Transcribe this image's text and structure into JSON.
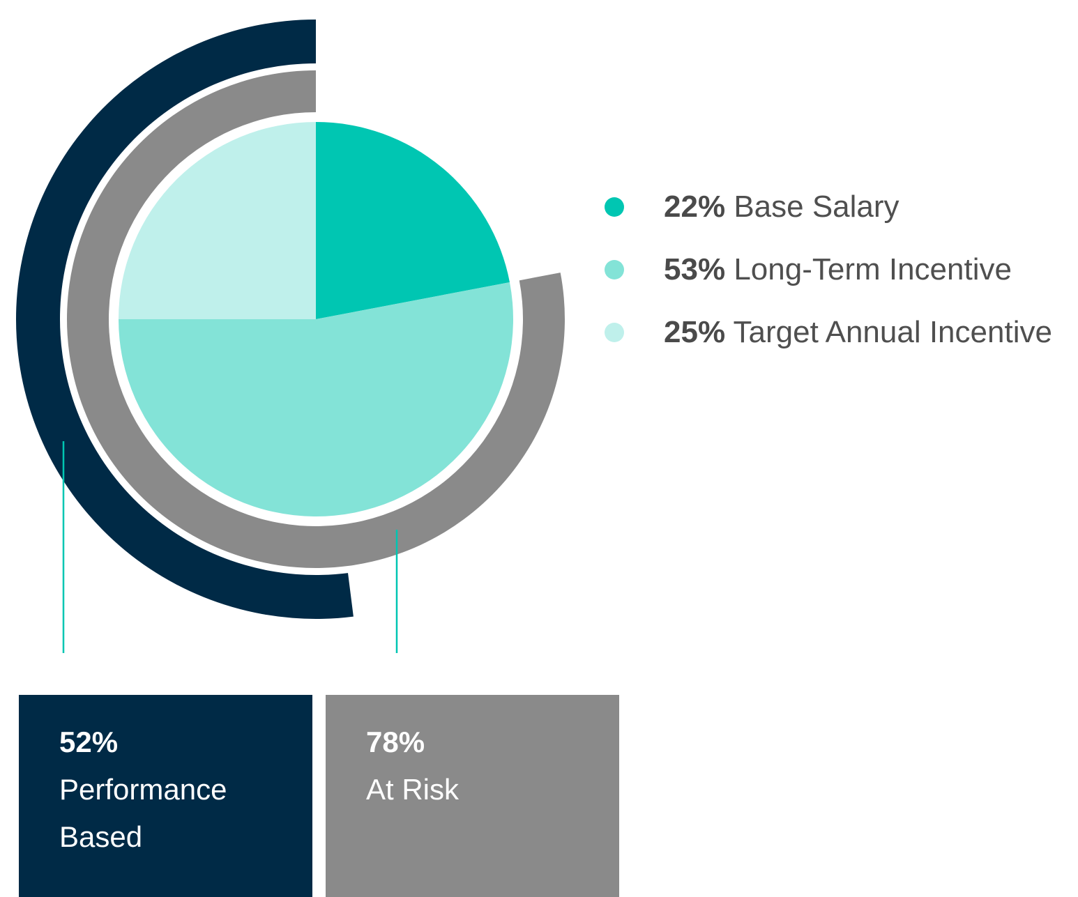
{
  "chart_data": {
    "type": "pie",
    "center_pie": {
      "slices": [
        {
          "name": "Base Salary",
          "value": 22,
          "label_pct": "22%",
          "label_text": "Base Salary",
          "color": "#00c6b2"
        },
        {
          "name": "Long-Term Incentive",
          "value": 53,
          "label_pct": "53%",
          "label_text": "Long-Term Incentive",
          "color": "#83e3d7"
        },
        {
          "name": "Target Annual Incentive",
          "value": 25,
          "label_pct": "25%",
          "label_text": "Target Annual Incentive",
          "color": "#bff0eb"
        }
      ]
    },
    "rings": [
      {
        "name": "Performance Based",
        "value": 52,
        "label_pct": "52%",
        "label_text": "Performance Based",
        "color": "#002a46"
      },
      {
        "name": "At Risk",
        "value": 78,
        "label_pct": "78%",
        "label_text": "At Risk",
        "color": "#8a8a8a"
      }
    ],
    "leader_line_color": "#00c6b2"
  }
}
